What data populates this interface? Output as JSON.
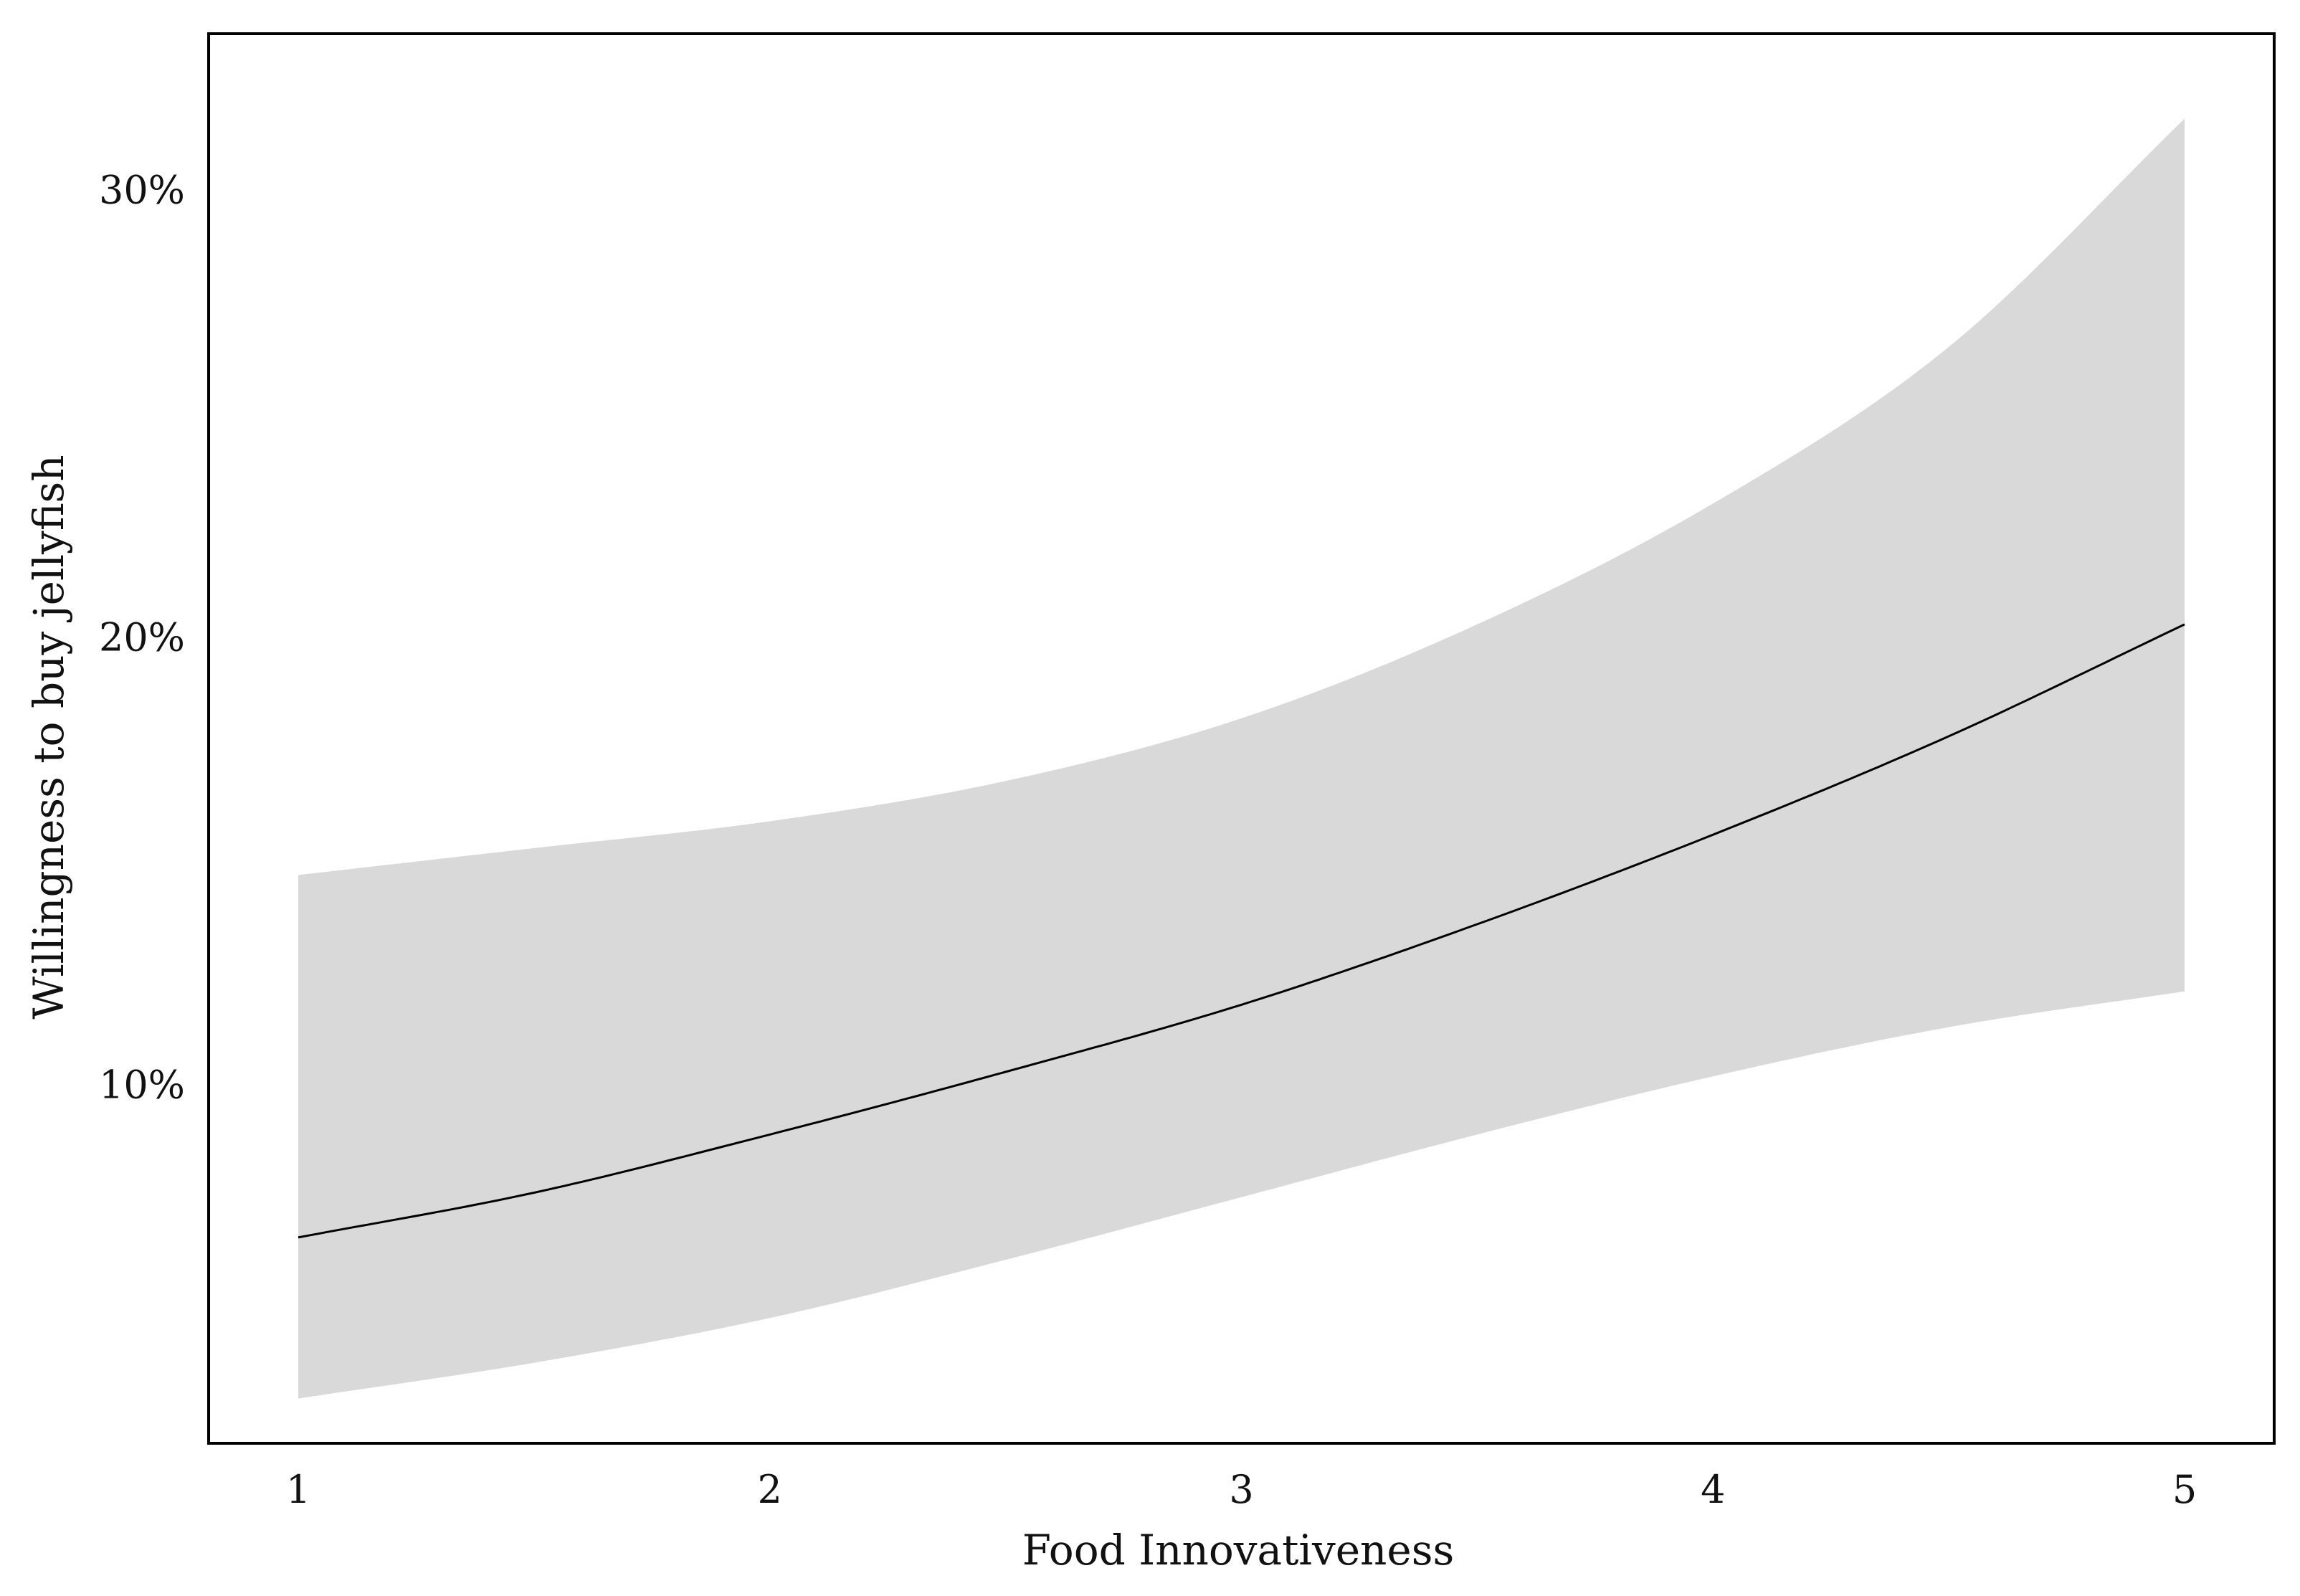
{
  "chart_data": {
    "type": "line",
    "title": "",
    "xlabel": "Food Innovativeness",
    "ylabel": "Willingness to buy jellyfish",
    "xlim": [
      0.81,
      5.19
    ],
    "ylim": [
      2.0,
      33.5
    ],
    "x_ticks": [
      1,
      2,
      3,
      4,
      5
    ],
    "x_tick_labels": [
      "1",
      "2",
      "3",
      "4",
      "5"
    ],
    "y_ticks": [
      10,
      20,
      30
    ],
    "y_tick_labels": [
      "10%",
      "20%",
      "30%"
    ],
    "grid": false,
    "legend": "none",
    "series": [
      {
        "x": [
          1.0,
          1.5,
          2.0,
          2.5,
          3.0,
          3.5,
          4.0,
          4.5,
          5.0
        ],
        "fit": [
          6.6,
          7.6,
          8.9,
          10.3,
          11.8,
          13.6,
          15.6,
          17.8,
          20.3
        ],
        "lower": [
          3.0,
          3.8,
          4.8,
          6.1,
          7.5,
          8.9,
          10.2,
          11.3,
          12.1
        ],
        "upper": [
          14.7,
          15.3,
          15.9,
          16.8,
          18.2,
          20.3,
          23.0,
          26.5,
          31.6
        ]
      }
    ],
    "colors": {
      "band": "#d9d9d9",
      "line": "#000000",
      "frame": "#000000"
    }
  }
}
